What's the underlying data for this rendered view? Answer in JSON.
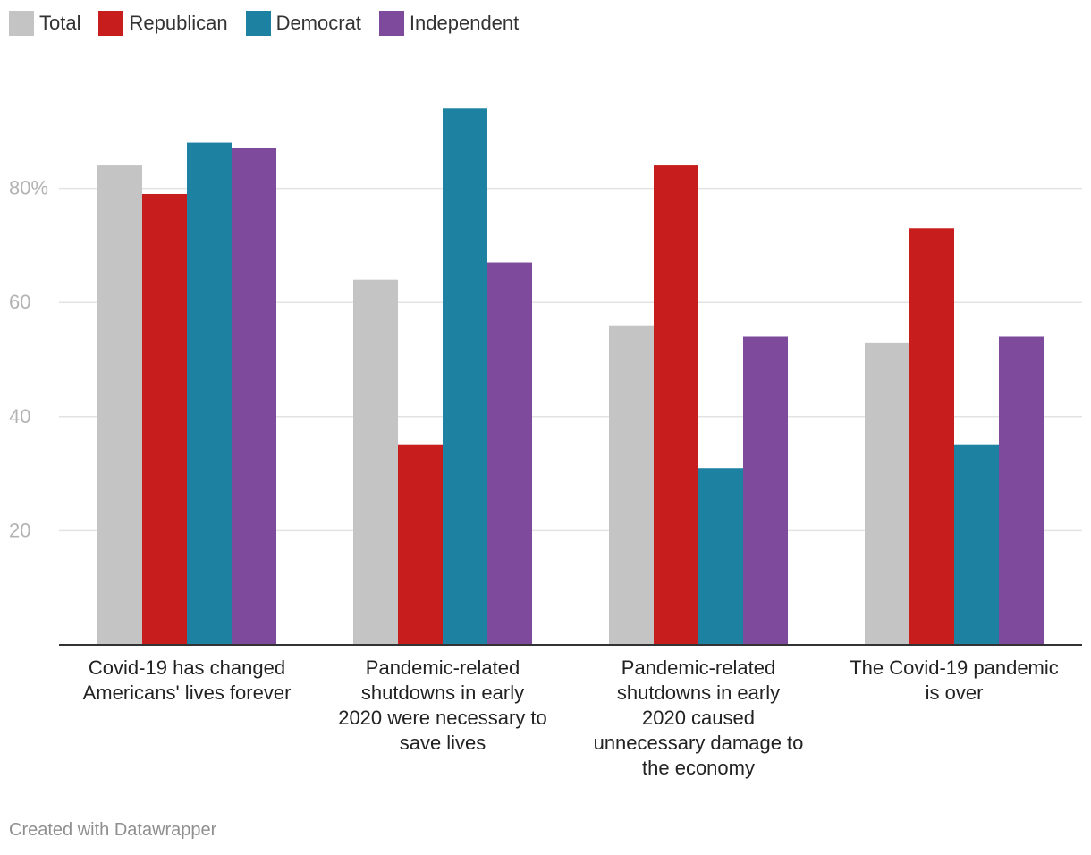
{
  "chart_data": {
    "type": "bar",
    "categories": [
      [
        "Covid-19 has changed",
        "Americans' lives forever"
      ],
      [
        "Pandemic-related",
        "shutdowns in early",
        "2020 were necessary to",
        "save lives"
      ],
      [
        "Pandemic-related",
        "shutdowns in early",
        "2020 caused",
        "unnecessary damage to",
        "the economy"
      ],
      [
        "The Covid-19 pandemic",
        "is over"
      ]
    ],
    "series": [
      {
        "name": "Total",
        "color": "#c4c4c4",
        "values": [
          84,
          64,
          56,
          53
        ]
      },
      {
        "name": "Republican",
        "color": "#c71e1d",
        "values": [
          79,
          35,
          84,
          73
        ]
      },
      {
        "name": "Democrat",
        "color": "#1d81a2",
        "values": [
          88,
          94,
          31,
          35
        ]
      },
      {
        "name": "Independent",
        "color": "#7e4a9b",
        "values": [
          87,
          67,
          54,
          54
        ]
      }
    ],
    "y_ticks": [
      {
        "value": 80,
        "label": "80%"
      },
      {
        "value": 60,
        "label": "60"
      },
      {
        "value": 40,
        "label": "40"
      },
      {
        "value": 20,
        "label": "20"
      }
    ],
    "ylim": [
      0,
      100
    ],
    "grid": true,
    "legend": "top-left",
    "title": "",
    "xlabel": "",
    "ylabel": ""
  },
  "footer": {
    "credit": "Created with Datawrapper"
  }
}
